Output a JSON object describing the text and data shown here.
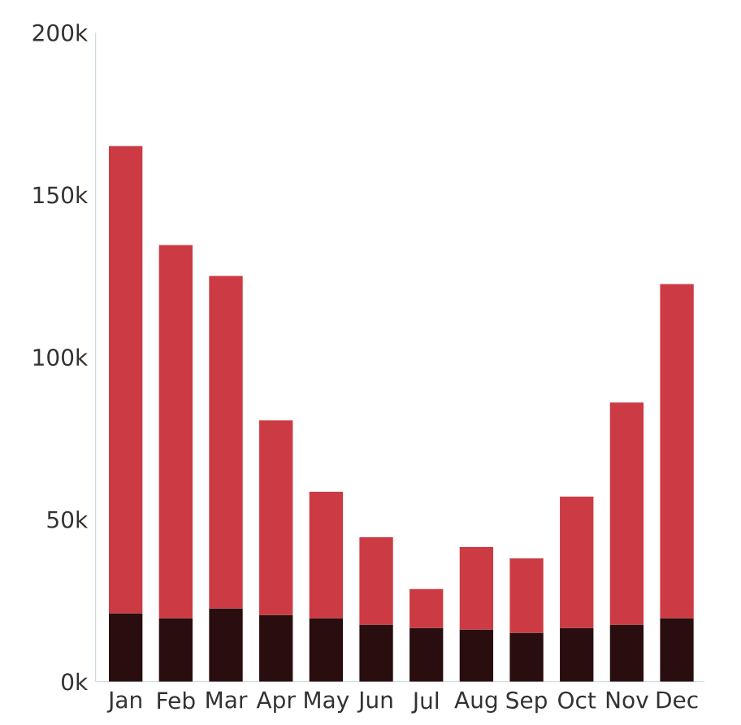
{
  "chart_data": {
    "type": "bar",
    "stacked": true,
    "categories": [
      "Jan",
      "Feb",
      "Mar",
      "Apr",
      "May",
      "Jun",
      "Jul",
      "Aug",
      "Sep",
      "Oct",
      "Nov",
      "Dec"
    ],
    "series": [
      {
        "color": "#2a0d0f",
        "values": [
          21000,
          19500,
          22500,
          20500,
          19500,
          17500,
          16500,
          16000,
          15000,
          16500,
          17500,
          19500
        ]
      },
      {
        "color": "#cc3b43",
        "values": [
          144000,
          115000,
          102500,
          60000,
          39000,
          27000,
          12000,
          25500,
          23000,
          40500,
          68500,
          103000
        ]
      }
    ],
    "ylim": [
      0,
      200000
    ],
    "yticks": [
      {
        "value": 0,
        "label": "0k"
      },
      {
        "value": 50000,
        "label": "50k"
      },
      {
        "value": 100000,
        "label": "100k"
      },
      {
        "value": 150000,
        "label": "150k"
      },
      {
        "value": 200000,
        "label": "200k"
      }
    ]
  }
}
